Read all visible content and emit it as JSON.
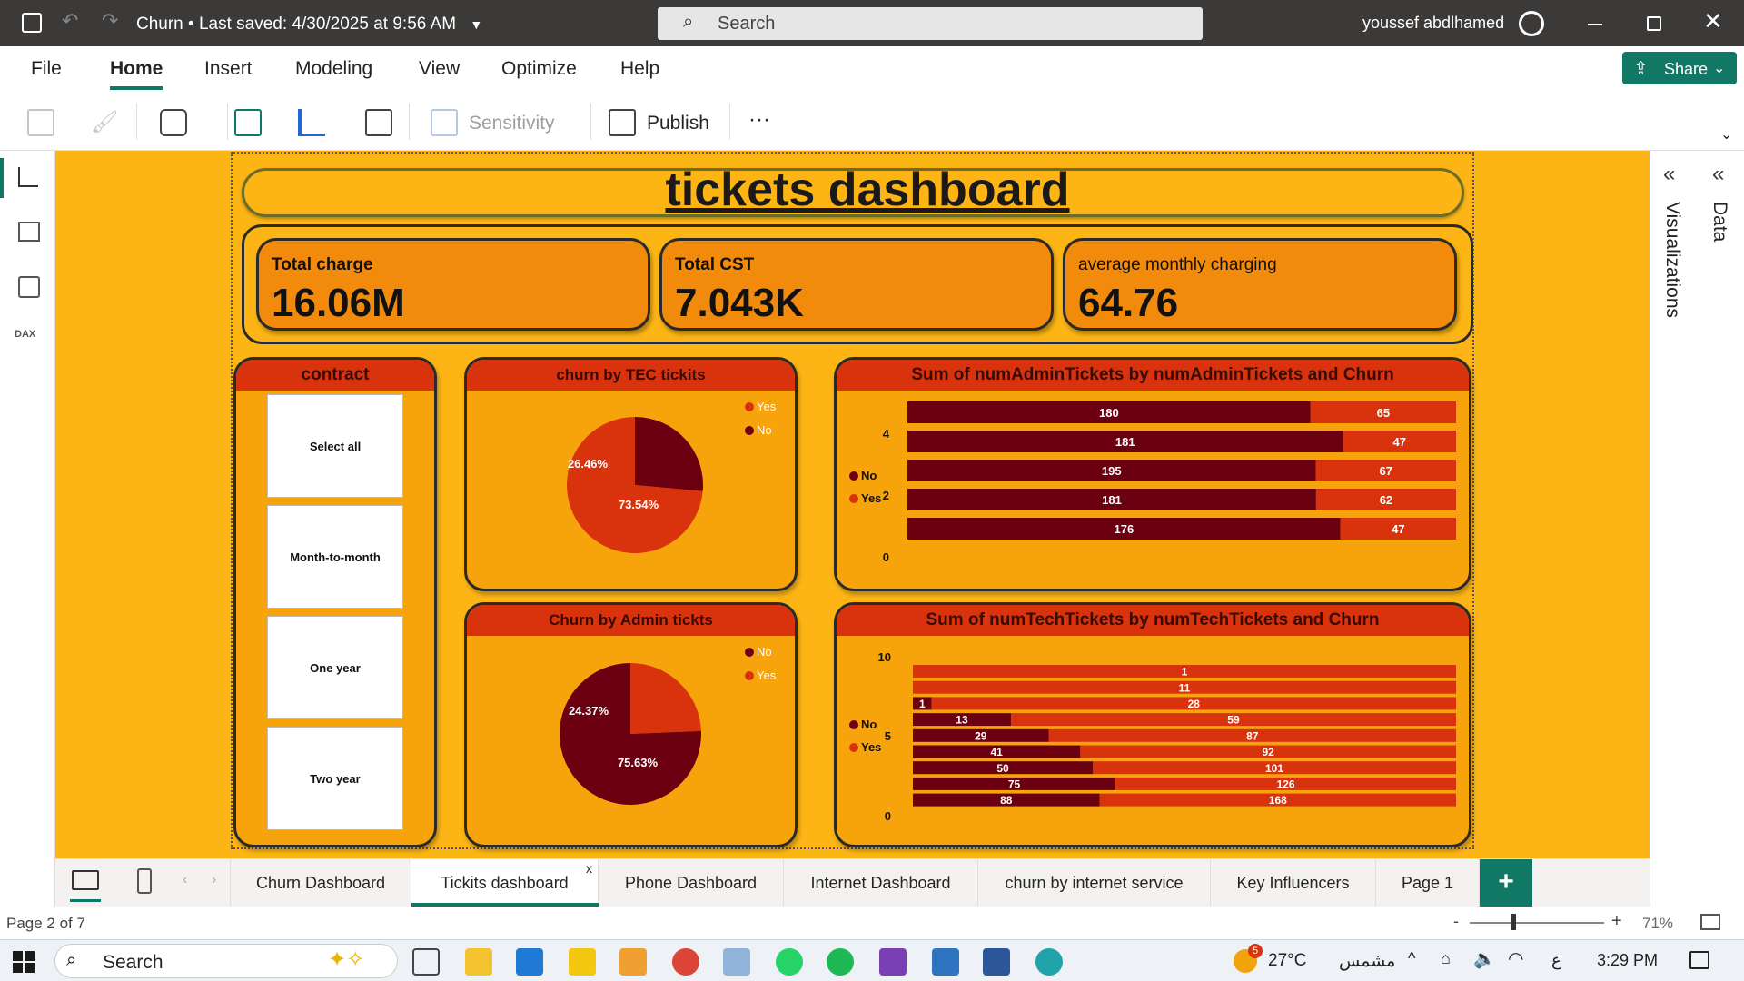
{
  "titlebar": {
    "doc_title": "Churn",
    "saved": "Last saved: 4/30/2025 at 9:56 AM",
    "search_placeholder": "Search",
    "user": "youssef abdlhamed"
  },
  "menu": {
    "file": "File",
    "home": "Home",
    "insert": "Insert",
    "modeling": "Modeling",
    "view": "View",
    "optimize": "Optimize",
    "help": "Help",
    "share": "Share"
  },
  "ribbon": {
    "sensitivity": "Sensitivity",
    "publish": "Publish",
    "more": "···"
  },
  "dashboard": {
    "title": "tickets dashboard"
  },
  "kpis": [
    {
      "label": "Total charge",
      "value": "16.06M"
    },
    {
      "label": "Total CST",
      "value": "7.043K"
    },
    {
      "label": "average monthly charging",
      "value": "64.76"
    }
  ],
  "slicer": {
    "title": "contract",
    "items": [
      "Select all",
      "Month-to-month",
      "One year",
      "Two year"
    ]
  },
  "pie_tec": {
    "title": "churn by TEC tickits",
    "legend": [
      "Yes",
      "No"
    ],
    "labels": [
      "26.46%",
      "73.54%"
    ]
  },
  "pie_admin": {
    "title": "Churn by Admin tickts",
    "legend": [
      "No",
      "Yes"
    ],
    "labels": [
      "24.37%",
      "75.63%"
    ]
  },
  "bar_admin": {
    "title": "Sum of numAdminTickets by numAdminTickets and Churn",
    "legend": [
      "No",
      "Yes"
    ],
    "axis": [
      "4",
      "2",
      "0"
    ]
  },
  "bar_tech": {
    "title": "Sum of numTechTickets by numTechTickets and Churn",
    "legend": [
      "No",
      "Yes"
    ],
    "axis": [
      "10",
      "5",
      "0"
    ]
  },
  "chart_data": [
    {
      "type": "pie",
      "title": "churn by TEC tickits",
      "series": [
        {
          "name": "No",
          "value": 26.46
        },
        {
          "name": "Yes",
          "value": 73.54
        }
      ],
      "colors": {
        "No": "#6b0010",
        "Yes": "#d8330c"
      }
    },
    {
      "type": "pie",
      "title": "Churn by Admin tickts",
      "series": [
        {
          "name": "Yes",
          "value": 24.37
        },
        {
          "name": "No",
          "value": 75.63
        }
      ],
      "colors": {
        "No": "#6b0010",
        "Yes": "#d8330c"
      }
    },
    {
      "type": "bar",
      "title": "Sum of numAdminTickets by numAdminTickets and Churn",
      "stacked": true,
      "orientation": "horizontal",
      "series": [
        {
          "name": "No",
          "values": [
            180,
            181,
            195,
            181,
            176
          ]
        },
        {
          "name": "Yes",
          "values": [
            65,
            47,
            67,
            62,
            47
          ]
        }
      ]
    },
    {
      "type": "bar",
      "title": "Sum of numTechTickets by numTechTickets and Churn",
      "stacked": true,
      "orientation": "horizontal",
      "series": [
        {
          "name": "No",
          "values": [
            null,
            null,
            1,
            13,
            29,
            41,
            50,
            75,
            88
          ]
        },
        {
          "name": "Yes",
          "values": [
            1,
            11,
            28,
            59,
            87,
            92,
            101,
            126,
            168
          ]
        }
      ]
    }
  ],
  "tabs": [
    "Churn Dashboard",
    "Tickits dashboard",
    "Phone Dashboard",
    "Internet Dashboard",
    "churn by internet service",
    "Key Influencers",
    "Page 1"
  ],
  "tab_close": "x",
  "status": {
    "page": "Page 2 of 7",
    "zoom": "71%",
    "zoom_minus": "-",
    "zoom_plus": "+"
  },
  "rightpanes": {
    "visualizations": "Visualizations",
    "data": "Data"
  },
  "taskbar": {
    "search": "Search",
    "weather_temp": "27°C",
    "weather_text": "مشمس",
    "lang": "ع",
    "time": "3:29 PM",
    "badge": "5"
  },
  "colors": {
    "canvas": "#fcb514",
    "panel": "#f7a30c",
    "header": "#d8330c",
    "dark": "#6b0010",
    "yes": "#d8330c"
  }
}
